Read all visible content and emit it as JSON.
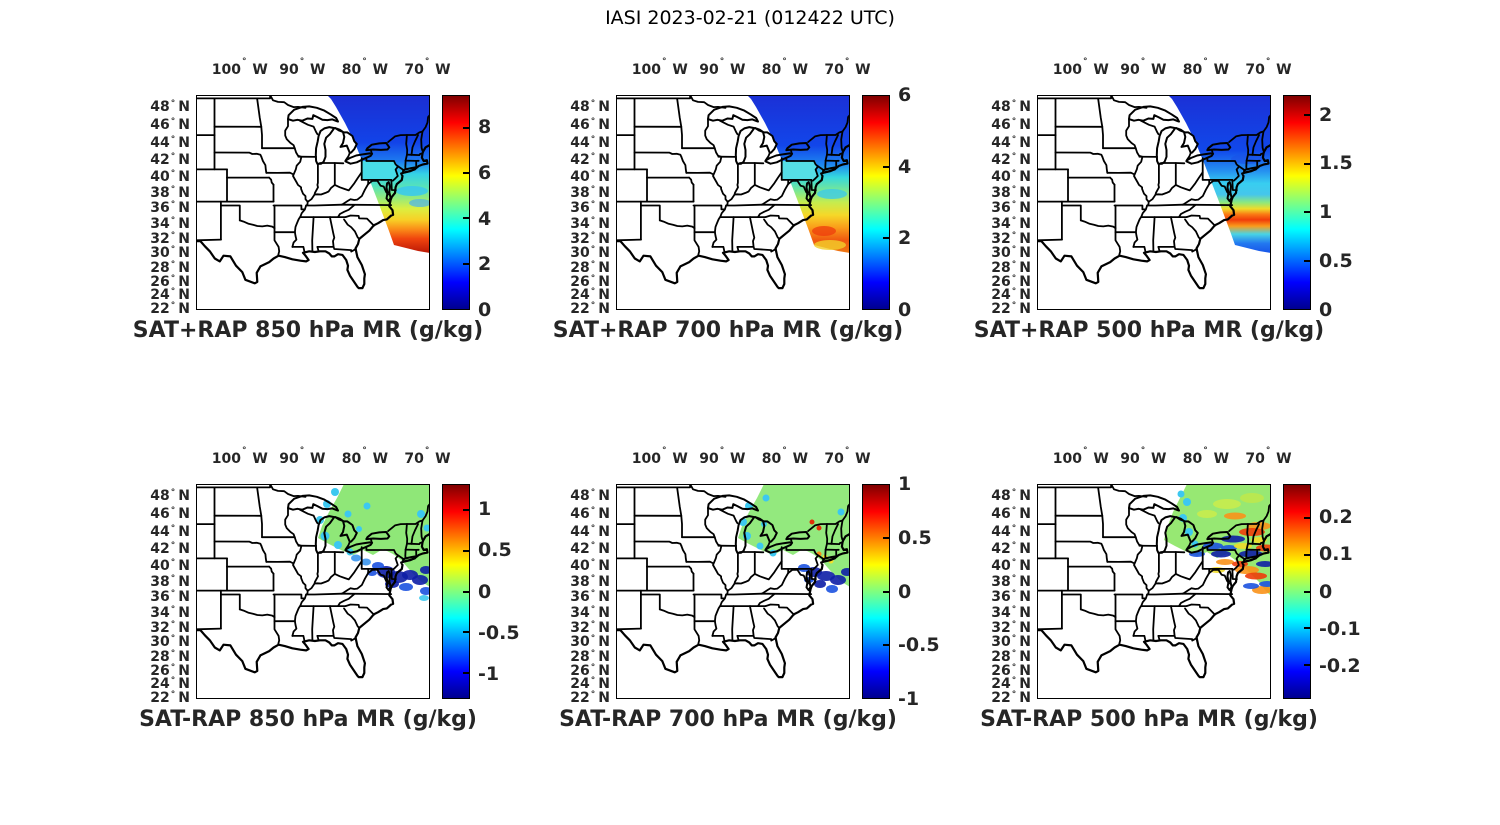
{
  "figure": {
    "title": "IASI 2023-02-21 (012422 UTC)",
    "background": "#ffffff"
  },
  "axes": {
    "degree_symbol": "°",
    "lon_ticks": [
      {
        "value": -100,
        "text": "100",
        "suffix": "W"
      },
      {
        "value": -90,
        "text": "90",
        "suffix": "W"
      },
      {
        "value": -80,
        "text": "80",
        "suffix": "W"
      },
      {
        "value": -70,
        "text": "70",
        "suffix": "W"
      }
    ],
    "lat_ticks": [
      {
        "value": 48,
        "text": "48",
        "suffix": "N"
      },
      {
        "value": 46,
        "text": "46",
        "suffix": "N"
      },
      {
        "value": 44,
        "text": "44",
        "suffix": "N"
      },
      {
        "value": 42,
        "text": "42",
        "suffix": "N"
      },
      {
        "value": 40,
        "text": "40",
        "suffix": "N"
      },
      {
        "value": 38,
        "text": "38",
        "suffix": "N"
      },
      {
        "value": 36,
        "text": "36",
        "suffix": "N"
      },
      {
        "value": 34,
        "text": "34",
        "suffix": "N"
      },
      {
        "value": 32,
        "text": "32",
        "suffix": "N"
      },
      {
        "value": 30,
        "text": "30",
        "suffix": "N"
      },
      {
        "value": 28,
        "text": "28",
        "suffix": "N"
      },
      {
        "value": 26,
        "text": "26",
        "suffix": "N"
      },
      {
        "value": 24,
        "text": "24",
        "suffix": "N"
      },
      {
        "value": 22,
        "text": "22",
        "suffix": "N"
      }
    ]
  },
  "colormap": {
    "name": "jet",
    "stops": [
      "#00008f",
      "#0000ff",
      "#00ffff",
      "#ffff00",
      "#ff0000",
      "#800000"
    ],
    "stop_positions": [
      0,
      12.5,
      37.5,
      62.5,
      87.5,
      100
    ]
  },
  "panels": [
    {
      "title": "SAT+RAP 850 hPa MR (g/kg)",
      "operation": "SAT+RAP",
      "level_hPa": 850,
      "variable": "MR",
      "units": "g/kg",
      "colorbar": {
        "min": 0,
        "max": 9.4,
        "tick_values": [
          0,
          2,
          4,
          6,
          8
        ],
        "tick_labels": [
          "0",
          "2",
          "4",
          "6",
          "8"
        ]
      }
    },
    {
      "title": "SAT+RAP 700 hPa MR (g/kg)",
      "operation": "SAT+RAP",
      "level_hPa": 700,
      "variable": "MR",
      "units": "g/kg",
      "colorbar": {
        "min": 0,
        "max": 6,
        "tick_values": [
          0,
          2,
          4,
          6
        ],
        "tick_labels": [
          "0",
          "2",
          "4",
          "6"
        ]
      }
    },
    {
      "title": "SAT+RAP 500 hPa MR (g/kg)",
      "operation": "SAT+RAP",
      "level_hPa": 500,
      "variable": "MR",
      "units": "g/kg",
      "colorbar": {
        "min": 0,
        "max": 2.2,
        "tick_values": [
          0,
          0.5,
          1,
          1.5,
          2
        ],
        "tick_labels": [
          "0",
          "0.5",
          "1",
          "1.5",
          "2"
        ]
      }
    },
    {
      "title": "SAT-RAP 850 hPa MR (g/kg)",
      "operation": "SAT-RAP",
      "level_hPa": 850,
      "variable": "MR",
      "units": "g/kg",
      "colorbar": {
        "min": -1.3,
        "max": 1.3,
        "tick_values": [
          -1,
          -0.5,
          0,
          0.5,
          1
        ],
        "tick_labels": [
          "-1",
          "-0.5",
          "0",
          "0.5",
          "1"
        ]
      }
    },
    {
      "title": "SAT-RAP 700 hPa MR (g/kg)",
      "operation": "SAT-RAP",
      "level_hPa": 700,
      "variable": "MR",
      "units": "g/kg",
      "colorbar": {
        "min": -1,
        "max": 1,
        "tick_values": [
          -1,
          -0.5,
          0,
          0.5,
          1
        ],
        "tick_labels": [
          "-1",
          "-0.5",
          "0",
          "0.5",
          "1"
        ]
      }
    },
    {
      "title": "SAT-RAP 500 hPa MR (g/kg)",
      "operation": "SAT-RAP",
      "level_hPa": 500,
      "variable": "MR",
      "units": "g/kg",
      "colorbar": {
        "min": -0.29,
        "max": 0.29,
        "tick_values": [
          -0.2,
          -0.1,
          0,
          0.1,
          0.2
        ],
        "tick_labels": [
          "-0.2",
          "-0.1",
          "0",
          "0.1",
          "0.2"
        ]
      }
    }
  ],
  "chart_data": [
    {
      "type": "heatmap",
      "title": "SAT+RAP 850 hPa MR (g/kg)",
      "x_ticks": [
        "100°W",
        "90°W",
        "80°W",
        "70°W"
      ],
      "y_ticks": [
        "48°N",
        "46°N",
        "44°N",
        "42°N",
        "40°N",
        "38°N",
        "36°N",
        "34°N",
        "32°N",
        "30°N",
        "28°N",
        "26°N",
        "24°N",
        "22°N"
      ],
      "colorbar_range": [
        0,
        9.4
      ],
      "colorbar_ticks": [
        0,
        2,
        4,
        6,
        8
      ],
      "legend_position": "right",
      "grid": false,
      "swath_values_by_lat": [
        {
          "lat": "44-49N",
          "value": "0.5-1.5"
        },
        {
          "lat": "40-44N",
          "value": "2-3"
        },
        {
          "lat": "36-40N",
          "value": "3-5"
        },
        {
          "lat": "34-36N",
          "value": "5-7"
        },
        {
          "lat": "32-34N",
          "value": "8-9.4"
        }
      ]
    },
    {
      "type": "heatmap",
      "title": "SAT+RAP 700 hPa MR (g/kg)",
      "x_ticks": [
        "100°W",
        "90°W",
        "80°W",
        "70°W"
      ],
      "y_ticks": [
        "48°N",
        "46°N",
        "44°N",
        "42°N",
        "40°N",
        "38°N",
        "36°N",
        "34°N",
        "32°N",
        "30°N",
        "28°N",
        "26°N",
        "24°N",
        "22°N"
      ],
      "colorbar_range": [
        0,
        6
      ],
      "colorbar_ticks": [
        0,
        2,
        4,
        6
      ],
      "legend_position": "right",
      "grid": false,
      "swath_values_by_lat": [
        {
          "lat": "44-49N",
          "value": "0.5-1"
        },
        {
          "lat": "40-44N",
          "value": "1.5-2"
        },
        {
          "lat": "36-40N",
          "value": "2-3.5"
        },
        {
          "lat": "32-36N",
          "value": "4-5.5"
        }
      ]
    },
    {
      "type": "heatmap",
      "title": "SAT+RAP 500 hPa MR (g/kg)",
      "x_ticks": [
        "100°W",
        "90°W",
        "80°W",
        "70°W"
      ],
      "y_ticks": [
        "48°N",
        "46°N",
        "44°N",
        "42°N",
        "40°N",
        "38°N",
        "36°N",
        "34°N",
        "32°N",
        "30°N",
        "28°N",
        "26°N",
        "24°N",
        "22°N"
      ],
      "colorbar_range": [
        0,
        2.2
      ],
      "colorbar_ticks": [
        0,
        0.5,
        1,
        1.5,
        2
      ],
      "legend_position": "right",
      "grid": false,
      "swath_values_by_lat": [
        {
          "lat": "40-49N",
          "value": "0.2-0.5"
        },
        {
          "lat": "37-40N",
          "value": "0.6-1"
        },
        {
          "lat": "35-36.5N",
          "value": "1.8-2.2"
        },
        {
          "lat": "32-35N",
          "value": "0.5-1"
        }
      ]
    },
    {
      "type": "heatmap",
      "title": "SAT-RAP 850 hPa MR (g/kg)",
      "x_ticks": [
        "100°W",
        "90°W",
        "80°W",
        "70°W"
      ],
      "y_ticks": [
        "48°N",
        "46°N",
        "44°N",
        "42°N",
        "40°N",
        "38°N",
        "36°N",
        "34°N",
        "32°N",
        "30°N",
        "28°N",
        "26°N",
        "24°N",
        "22°N"
      ],
      "colorbar_range": [
        -1.3,
        1.3
      ],
      "colorbar_ticks": [
        -1,
        -0.5,
        0,
        0.5,
        1
      ],
      "legend_position": "right",
      "grid": false,
      "swath_values_by_lat": [
        {
          "lat": "43-49N",
          "value": "0 to 0.2"
        },
        {
          "lat": "41-43N",
          "value": "-0.3 to -0.6 patches"
        },
        {
          "lat": "38-40N coast",
          "value": "-1 to -1.3"
        }
      ]
    },
    {
      "type": "heatmap",
      "title": "SAT-RAP 700 hPa MR (g/kg)",
      "x_ticks": [
        "100°W",
        "90°W",
        "80°W",
        "70°W"
      ],
      "y_ticks": [
        "48°N",
        "46°N",
        "44°N",
        "42°N",
        "40°N",
        "38°N",
        "36°N",
        "34°N",
        "32°N",
        "30°N",
        "28°N",
        "26°N",
        "24°N",
        "22°N"
      ],
      "colorbar_range": [
        -1,
        1
      ],
      "colorbar_ticks": [
        -1,
        -0.5,
        0,
        0.5,
        1
      ],
      "legend_position": "right",
      "grid": false,
      "swath_values_by_lat": [
        {
          "lat": "43-49N",
          "value": "0 to 0.1"
        },
        {
          "lat": "44-45N",
          "value": "isolated +0.8 specks"
        },
        {
          "lat": "38-40N coast",
          "value": "-0.8 to -1 with +0.4 specks"
        }
      ]
    },
    {
      "type": "heatmap",
      "title": "SAT-RAP 500 hPa MR (g/kg)",
      "x_ticks": [
        "100°W",
        "90°W",
        "80°W",
        "70°W"
      ],
      "y_ticks": [
        "48°N",
        "46°N",
        "44°N",
        "42°N",
        "40°N",
        "38°N",
        "36°N",
        "34°N",
        "32°N",
        "30°N",
        "28°N",
        "26°N",
        "24°N",
        "22°N"
      ],
      "colorbar_range": [
        -0.29,
        0.29
      ],
      "colorbar_ticks": [
        -0.2,
        -0.1,
        0,
        0.1,
        0.2
      ],
      "legend_position": "right",
      "grid": false,
      "swath_values_by_lat": [
        {
          "lat": "45-49N",
          "value": "0 to 0.05"
        },
        {
          "lat": "40-45N",
          "value": "alternating -0.2 and +0.2 streaks"
        },
        {
          "lat": "37-40N",
          "value": "mixed ±0.1-0.25 streaks"
        }
      ]
    }
  ]
}
